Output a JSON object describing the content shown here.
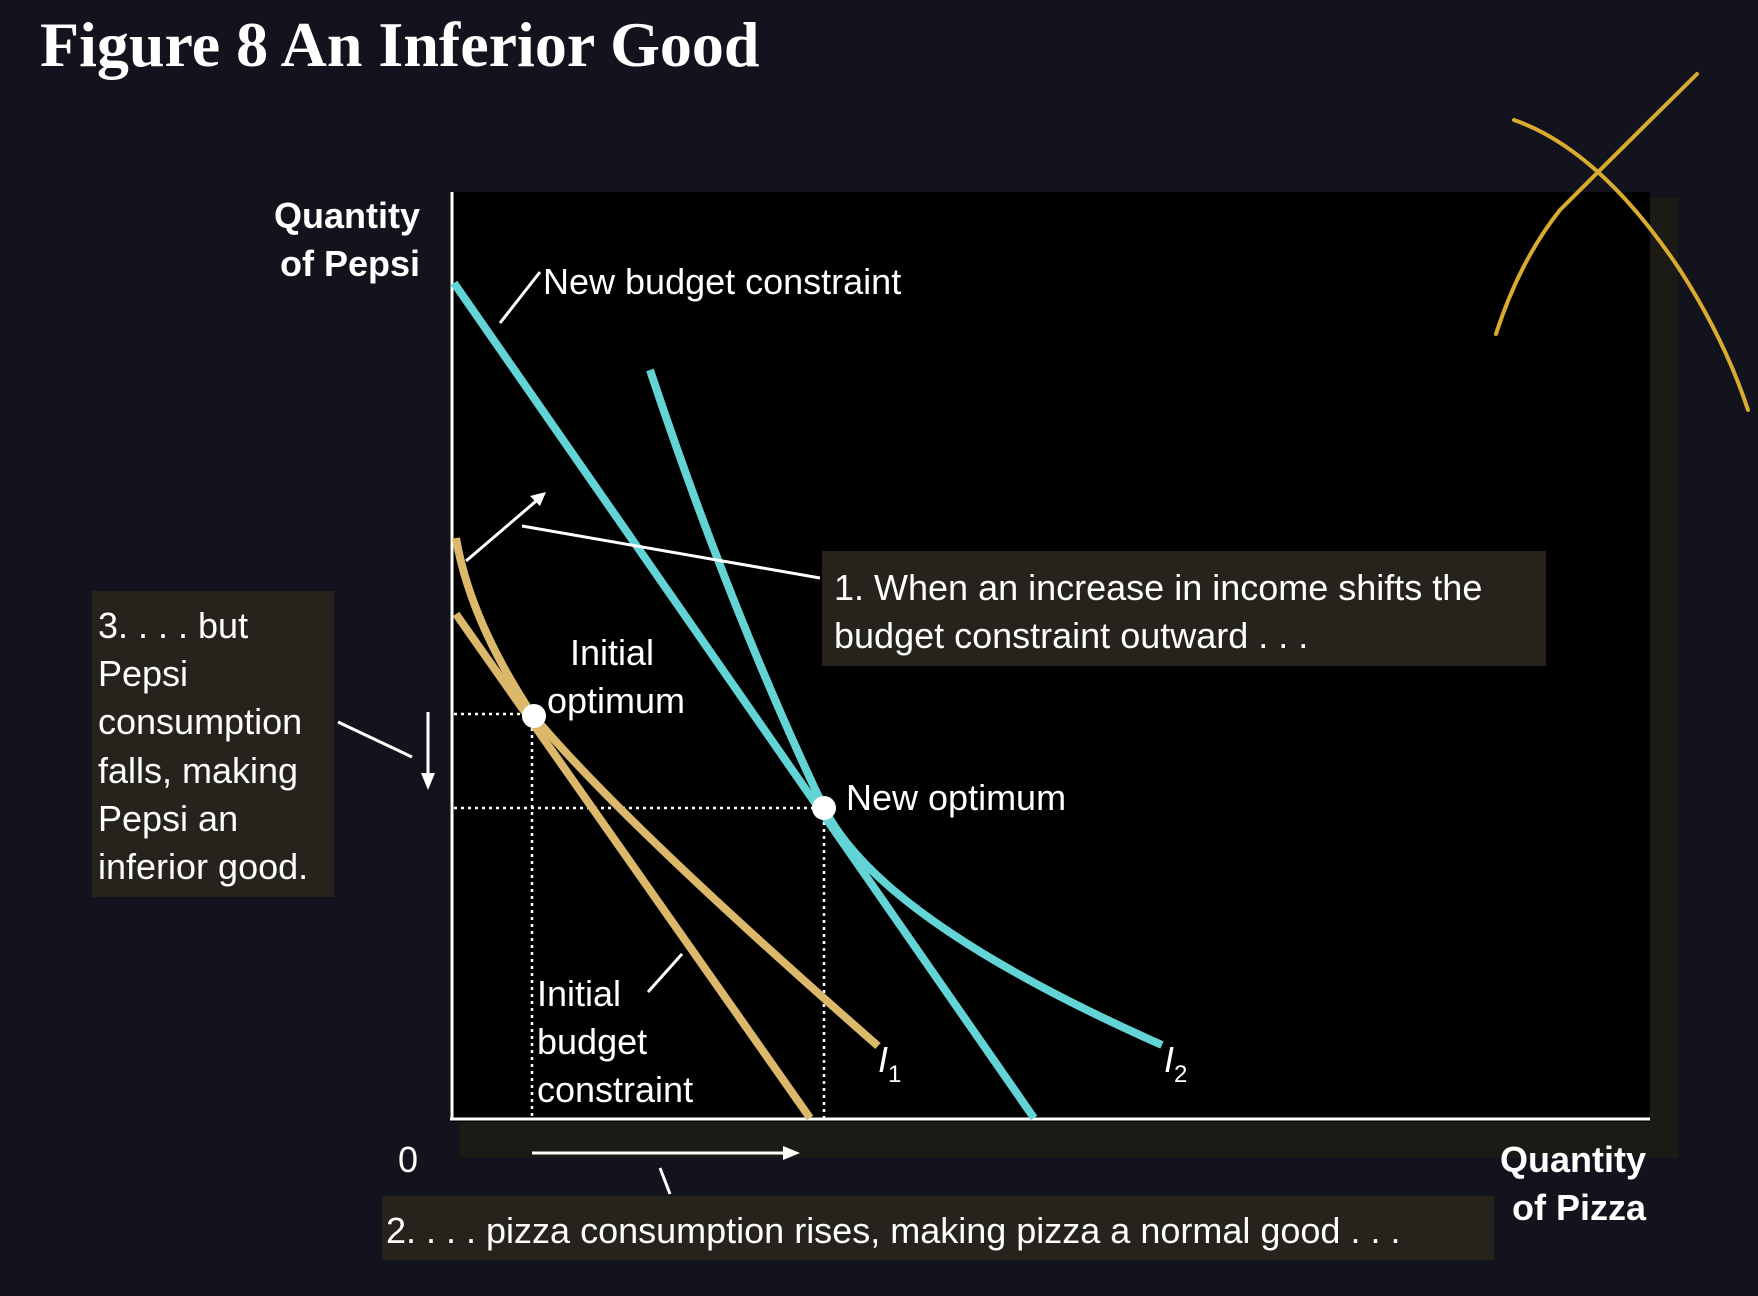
{
  "title": "Figure 8 An Inferior Good",
  "axes": {
    "y_label_line1": "Quantity",
    "y_label_line2": "of Pepsi",
    "x_label_line1": "Quantity",
    "x_label_line2": "of Pizza",
    "origin": "0"
  },
  "labels": {
    "new_budget_constraint": "New budget constraint",
    "initial_optimum_line1": "Initial",
    "initial_optimum_line2": "optimum",
    "new_optimum": "New optimum",
    "initial_budget_line1": "Initial",
    "initial_budget_line2": "budget",
    "initial_budget_line3": "constraint",
    "i1": "I",
    "i1_sub": "1",
    "i2": "I",
    "i2_sub": "2"
  },
  "callouts": {
    "step1_line1": "1. When an increase in income shifts the",
    "step1_line2": "budget constraint outward . . .",
    "step2": "2. . . . pizza consumption rises, making pizza a normal good . . .",
    "step3_line1": "3. . . . but",
    "step3_line2": "Pepsi",
    "step3_line3": "consumption",
    "step3_line4": "falls, making",
    "step3_line5": "Pepsi an",
    "step3_line6": "inferior good."
  },
  "colors": {
    "background": "#12131d",
    "plot_bg": "#000000",
    "initial_curves": "#dcb86a",
    "new_curves": "#63d4d6",
    "annotation_ink": "#d9ab2e",
    "callout_bg": "#26231c"
  }
}
